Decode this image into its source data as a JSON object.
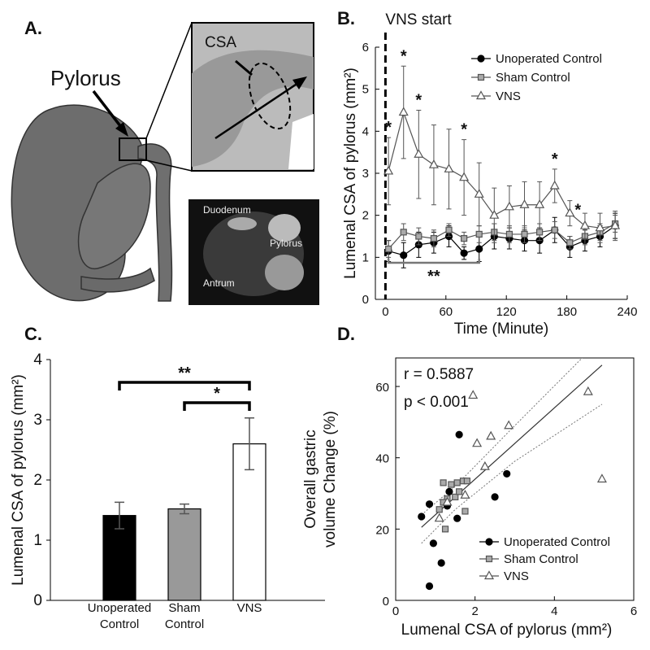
{
  "panel_a": {
    "label": "A.",
    "pylorus": "Pylorus",
    "csa": "CSA",
    "inset_labels": [
      "Duodenum",
      "Pylorus",
      "Antrum"
    ]
  },
  "chart_data": [
    {
      "type": "line",
      "title": "B.",
      "xlabel": "Time (Minute)",
      "ylabel": "Lumenal CSA of pylorus (mm²)",
      "x": [
        3,
        18,
        33,
        48,
        63,
        78,
        93,
        108,
        123,
        138,
        153,
        168,
        183,
        198,
        213,
        228
      ],
      "xlim": [
        -10,
        240
      ],
      "xticks": [
        0,
        60,
        120,
        180,
        240
      ],
      "ylim": [
        0,
        6
      ],
      "yticks": [
        0,
        1,
        2,
        3,
        4,
        5,
        6
      ],
      "vns_start": {
        "label": "VNS start",
        "x": 0
      },
      "legend": "upper right",
      "series": [
        {
          "name": "Unoperated Control",
          "color": "#000000",
          "marker": "circle",
          "marker_fill": "#000000",
          "values": [
            1.15,
            1.05,
            1.3,
            1.35,
            1.5,
            1.1,
            1.2,
            1.5,
            1.45,
            1.4,
            1.4,
            1.65,
            1.25,
            1.4,
            1.5,
            1.75
          ],
          "errors": [
            0.25,
            0.3,
            0.3,
            0.25,
            0.25,
            0.15,
            0.3,
            0.3,
            0.25,
            0.25,
            0.3,
            0.3,
            0.25,
            0.25,
            0.25,
            0.3
          ]
        },
        {
          "name": "Sham Control",
          "color": "#555555",
          "marker": "square",
          "marker_fill": "#aaaaaa",
          "values": [
            1.2,
            1.6,
            1.5,
            1.45,
            1.65,
            1.45,
            1.55,
            1.6,
            1.55,
            1.55,
            1.6,
            1.65,
            1.35,
            1.5,
            1.6,
            1.8
          ],
          "errors": [
            0.2,
            0.2,
            0.2,
            0.2,
            0.15,
            0.15,
            0.2,
            0.2,
            0.2,
            0.2,
            0.2,
            0.2,
            0.15,
            0.2,
            0.2,
            0.2
          ]
        },
        {
          "name": "VNS",
          "color": "#555555",
          "marker": "triangle",
          "marker_fill": "#ffffff",
          "values": [
            3.05,
            4.45,
            3.45,
            3.2,
            3.1,
            2.9,
            2.5,
            2.0,
            2.2,
            2.25,
            2.25,
            2.7,
            2.05,
            1.75,
            1.7,
            1.75
          ],
          "errors": [
            0.8,
            1.1,
            1.05,
            0.95,
            0.95,
            0.9,
            0.75,
            0.65,
            0.5,
            0.55,
            0.55,
            0.4,
            0.3,
            0.3,
            0.35,
            0.35
          ]
        }
      ],
      "significance": [
        "*",
        "*",
        "*",
        "*",
        "*",
        "*"
      ],
      "bracket": {
        "label": "**",
        "x": [
          3,
          93
        ]
      }
    },
    {
      "type": "bar",
      "title": "C.",
      "ylabel": "Lumenal CSA of pylorus (mm²)",
      "categories": [
        "Unoperated Control",
        "Sham Control",
        "VNS"
      ],
      "values": [
        1.41,
        1.52,
        2.6
      ],
      "errors": [
        0.22,
        0.08,
        0.43
      ],
      "colors": [
        "#000000",
        "#999999",
        "#ffffff"
      ],
      "ylim": [
        0,
        4
      ],
      "yticks": [
        0,
        1,
        2,
        3,
        4
      ],
      "annotations": [
        "**",
        "*"
      ]
    },
    {
      "type": "scatter",
      "title": "D.",
      "xlabel": "Lumenal CSA of pylorus (mm²)",
      "ylabel": [
        "Overall gastric",
        "volume Change (%)"
      ],
      "xlim": [
        0,
        6
      ],
      "xticks": [
        0,
        2,
        4,
        6
      ],
      "ylim": [
        0,
        68
      ],
      "yticks": [
        0,
        20,
        40,
        60
      ],
      "annotations": [
        "r = 0.5887",
        "p < 0.001"
      ],
      "legend": "lower right",
      "series": [
        {
          "name": "Unoperated Control",
          "color": "#000000",
          "marker": "circle",
          "marker_fill": "#000000",
          "x": [
            0.65,
            0.85,
            0.95,
            1.15,
            0.85,
            1.3,
            1.35,
            1.55,
            1.6,
            2.5,
            2.8
          ],
          "values": [
            23.5,
            27,
            16,
            10.5,
            4,
            26.5,
            30.5,
            23,
            46.5,
            29,
            35.5
          ]
        },
        {
          "name": "Sham Control",
          "color": "#555555",
          "marker": "square",
          "marker_fill": "#aaaaaa",
          "x": [
            1.1,
            1.2,
            1.25,
            1.3,
            1.4,
            1.5,
            1.55,
            1.6,
            1.7,
            1.75,
            1.8,
            1.2
          ],
          "values": [
            25.5,
            33,
            20,
            28.5,
            32.5,
            29,
            33,
            30.5,
            33.5,
            25,
            33.5,
            27.5
          ]
        },
        {
          "name": "VNS",
          "color": "#555555",
          "marker": "triangle",
          "marker_fill": "#ffffff",
          "x": [
            1.1,
            1.3,
            1.75,
            2.05,
            2.25,
            2.4,
            2.85,
            1.95,
            4.85,
            5.2
          ],
          "values": [
            23,
            27.5,
            29.5,
            44,
            37.5,
            46,
            49,
            57.5,
            58.5,
            34
          ]
        }
      ],
      "fit": {
        "color": "#333333",
        "x": [
          0.65,
          5.2
        ],
        "values": [
          20.5,
          66
        ]
      },
      "ci_upper": {
        "color": "#777777",
        "x": [
          0.65,
          1.5,
          3,
          4.7
        ],
        "values": [
          24,
          32,
          49,
          68
        ]
      },
      "ci_lower": {
        "color": "#777777",
        "x": [
          0.65,
          1.5,
          3,
          5.2
        ],
        "values": [
          16,
          25.5,
          39,
          55
        ]
      }
    }
  ]
}
